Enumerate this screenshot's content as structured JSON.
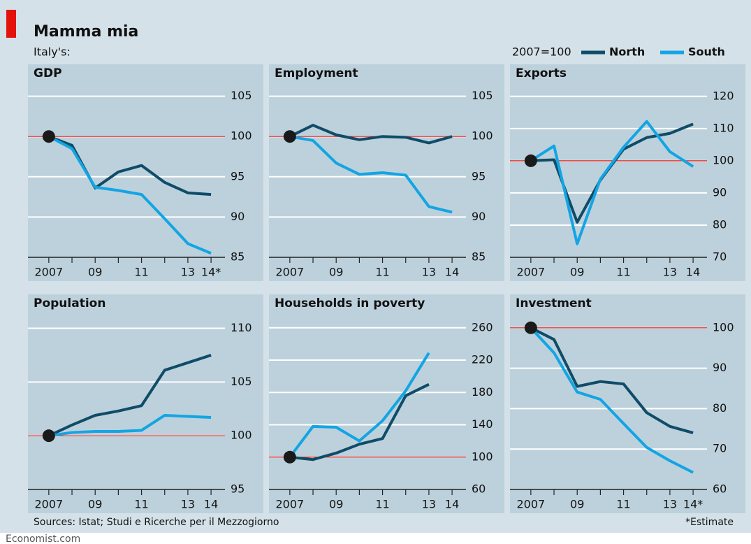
{
  "header": {
    "title": "Mamma mia",
    "subtitle": "Italy's:",
    "note": "2007=100",
    "legend": [
      {
        "name": "North",
        "color": "#0f4c68"
      },
      {
        "name": "South",
        "color": "#13a5e3"
      }
    ],
    "source": "Sources: Istat; Studi e Ricerche per il Mezzogiorno",
    "footnote": "*Estimate",
    "credit": "Economist.com"
  },
  "chart_data": [
    {
      "type": "line",
      "title": "GDP",
      "x": [
        2007,
        2008,
        2009,
        2010,
        2011,
        2012,
        2013,
        2014
      ],
      "xlim": [
        2006.1,
        2014.6
      ],
      "ylim": [
        85,
        106.7
      ],
      "yticks": [
        85,
        90,
        95,
        100,
        105
      ],
      "reference": 100,
      "grid": true,
      "xticks": [
        2007,
        {
          "value": 2009,
          "label": "09"
        },
        {
          "value": 2011,
          "label": "11"
        },
        {
          "value": 2013,
          "label": "13"
        },
        {
          "value": 2014,
          "label": "14*"
        }
      ],
      "series": [
        {
          "values": [
            100,
            98.9,
            93.6,
            95.6,
            96.4,
            94.3,
            93.0,
            92.8
          ]
        },
        {
          "values": [
            100,
            98.5,
            93.7,
            93.3,
            92.8,
            89.8,
            86.7,
            85.5
          ]
        }
      ]
    },
    {
      "type": "line",
      "title": "Employment",
      "x": [
        2007,
        2008,
        2009,
        2010,
        2011,
        2012,
        2013,
        2014
      ],
      "xlim": [
        2006.1,
        2014.6
      ],
      "ylim": [
        85,
        106.7
      ],
      "yticks": [
        85,
        90,
        95,
        100,
        105
      ],
      "reference": 100,
      "grid": true,
      "xticks": [
        2007,
        {
          "value": 2009,
          "label": "09"
        },
        {
          "value": 2011,
          "label": "11"
        },
        {
          "value": 2013,
          "label": "13"
        },
        {
          "value": 2014,
          "label": "14"
        }
      ],
      "series": [
        {
          "values": [
            100,
            101.4,
            100.2,
            99.6,
            100,
            99.9,
            99.2,
            100
          ]
        },
        {
          "values": [
            100,
            99.5,
            96.7,
            95.3,
            95.5,
            95.2,
            91.3,
            90.6
          ]
        }
      ]
    },
    {
      "type": "line",
      "title": "Exports",
      "x": [
        2007,
        2008,
        2009,
        2010,
        2011,
        2012,
        2013,
        2014
      ],
      "xlim": [
        2006.1,
        2014.6
      ],
      "ylim": [
        70,
        124.3
      ],
      "yticks": [
        70,
        80,
        90,
        100,
        110,
        120
      ],
      "reference": 100,
      "grid": true,
      "xticks": [
        2007,
        {
          "value": 2009,
          "label": "09"
        },
        {
          "value": 2011,
          "label": "11"
        },
        {
          "value": 2013,
          "label": "13"
        },
        {
          "value": 2014,
          "label": "14"
        }
      ],
      "series": [
        {
          "values": [
            100,
            100.3,
            80.9,
            94,
            103.6,
            107.2,
            108.5,
            111.4
          ]
        },
        {
          "values": [
            100,
            104.6,
            74.2,
            94.3,
            104.2,
            112.2,
            102.8,
            98.2
          ]
        }
      ]
    },
    {
      "type": "line",
      "title": "Population",
      "x": [
        2007,
        2008,
        2009,
        2010,
        2011,
        2012,
        2013,
        2014
      ],
      "xlim": [
        2006.1,
        2014.6
      ],
      "ylim": [
        95,
        111.4
      ],
      "yticks": [
        95,
        100,
        105,
        110
      ],
      "reference": 100,
      "grid": true,
      "xticks": [
        2007,
        {
          "value": 2009,
          "label": "09"
        },
        {
          "value": 2011,
          "label": "11"
        },
        {
          "value": 2013,
          "label": "13"
        },
        {
          "value": 2014,
          "label": "14"
        }
      ],
      "series": [
        {
          "values": [
            100,
            101,
            101.9,
            102.3,
            102.8,
            106.1,
            106.8,
            107.5
          ]
        },
        {
          "values": [
            100,
            100.3,
            100.4,
            100.4,
            100.5,
            101.9,
            101.8,
            101.7
          ]
        }
      ]
    },
    {
      "type": "line",
      "title": "Households in poverty",
      "x": [
        2007,
        2008,
        2009,
        2010,
        2011,
        2012,
        2013,
        2014
      ],
      "xlim": [
        2006.1,
        2014.6
      ],
      "ylim": [
        60,
        278
      ],
      "yticks": [
        60,
        100,
        140,
        180,
        220,
        260
      ],
      "reference": 100,
      "grid": true,
      "xticks": [
        2007,
        {
          "value": 2009,
          "label": "09"
        },
        {
          "value": 2011,
          "label": "11"
        },
        {
          "value": 2013,
          "label": "13"
        },
        {
          "value": 2014,
          "label": "14"
        }
      ],
      "series": [
        {
          "values": [
            100,
            97,
            105,
            116,
            123,
            176,
            190,
            null
          ]
        },
        {
          "values": [
            100,
            138,
            137,
            120,
            145,
            182,
            229,
            null
          ]
        }
      ]
    },
    {
      "type": "line",
      "title": "Investment",
      "x": [
        2007,
        2008,
        2009,
        2010,
        2011,
        2012,
        2013,
        2014
      ],
      "xlim": [
        2006.1,
        2014.6
      ],
      "ylim": [
        60,
        103.6
      ],
      "yticks": [
        60,
        70,
        80,
        90,
        100
      ],
      "reference": 100,
      "grid": true,
      "xticks": [
        2007,
        {
          "value": 2009,
          "label": "09"
        },
        {
          "value": 2011,
          "label": "11"
        },
        {
          "value": 2013,
          "label": "13"
        },
        {
          "value": 2014,
          "label": "14*"
        }
      ],
      "series": [
        {
          "values": [
            100,
            97.1,
            85.5,
            86.7,
            86.1,
            79,
            75.6,
            74
          ]
        },
        {
          "values": [
            100,
            93.8,
            84.1,
            82.3,
            76.3,
            70.4,
            67.1,
            64.2
          ]
        }
      ]
    }
  ]
}
